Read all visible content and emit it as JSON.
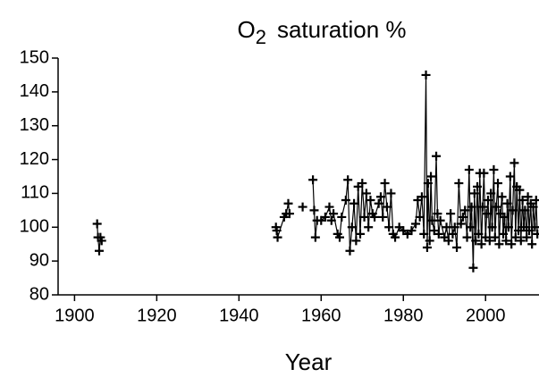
{
  "chart_data": {
    "type": "line",
    "title": [
      "O",
      "2",
      "saturation %"
    ],
    "x_label": "Year",
    "color": "#000000",
    "marker": "plus",
    "xlim": [
      1896,
      2013
    ],
    "ylim": [
      80,
      150
    ],
    "xticks": [
      1900,
      1920,
      1940,
      1960,
      1980,
      2000
    ],
    "yticks": [
      80,
      90,
      100,
      110,
      120,
      130,
      140,
      150
    ],
    "x": [
      1905.5,
      1905.7,
      1906,
      1906.3,
      1906.6,
      null,
      1949,
      1949.2,
      1949.4,
      1951,
      1951.5,
      1952,
      1952.3,
      null,
      1955.5,
      null,
      1958,
      1958.3,
      1958.6,
      1959,
      1960,
      1961,
      1962,
      1962.5,
      1963,
      1964,
      1964.5,
      1965,
      1966,
      1966.5,
      1967,
      1967.5,
      1968,
      1968.5,
      1969,
      1969.5,
      1970,
      1970.5,
      1971,
      1971.5,
      1972,
      1972.5,
      1973,
      1974,
      1974.5,
      1975,
      1975.5,
      1976,
      1976.5,
      1977,
      1977.5,
      1978,
      1979,
      1980,
      1981,
      1982,
      1983,
      1983.5,
      1984,
      1984.5,
      1985,
      1985.5,
      1985.8,
      1986,
      1986.4,
      1986.7,
      1987,
      1987.5,
      1988,
      1988.3,
      1988.6,
      1989,
      1990,
      1990.5,
      1991,
      1991.5,
      1992,
      1992.5,
      1993,
      1993.5,
      1994,
      1994.5,
      1995,
      1995.5,
      1996,
      1996.3,
      1996.6,
      1997,
      1997.3,
      1997.6,
      1998,
      1998.3,
      1998.6,
      1999,
      1999.3,
      1999.6,
      2000,
      2000.3,
      2000.6,
      2001,
      2001.3,
      2001.6,
      2002,
      2002.3,
      2002.6,
      2003,
      2003.3,
      2003.6,
      2004,
      2004.3,
      2004.6,
      2005,
      2005.3,
      2005.6,
      2006,
      2006.3,
      2006.6,
      2007,
      2007.3,
      2007.6,
      2008,
      2008.3,
      2008.6,
      2009,
      2009.3,
      2009.6,
      2010,
      2010.3,
      2010.6,
      2011,
      2011.3,
      2011.6,
      2012,
      2012.3,
      2012.6
    ],
    "values": [
      101,
      97,
      93,
      97,
      96,
      null,
      100,
      99,
      97,
      103,
      104,
      107,
      104,
      null,
      106,
      null,
      114,
      105,
      97,
      102,
      102,
      103,
      106,
      102,
      104,
      98,
      97,
      103,
      108,
      114,
      93,
      100,
      107,
      96,
      112,
      98,
      113,
      103,
      110,
      100,
      108,
      104,
      103,
      107,
      109,
      103,
      113,
      106,
      100,
      110,
      98,
      97,
      100,
      99,
      98,
      99,
      101,
      108,
      103,
      109,
      98,
      145,
      94,
      113,
      96,
      115,
      102,
      99,
      121,
      104,
      98,
      102,
      97,
      100,
      96,
      104,
      98,
      100,
      94,
      113,
      101,
      103,
      105,
      97,
      117,
      100,
      106,
      88,
      110,
      96,
      112,
      98,
      116,
      95,
      106,
      116,
      97,
      104,
      108,
      96,
      110,
      100,
      117,
      97,
      106,
      113,
      95,
      104,
      109,
      98,
      103,
      96,
      107,
      100,
      115,
      95,
      105,
      119,
      97,
      112,
      99,
      111,
      96,
      108,
      100,
      105,
      97,
      109,
      99,
      107,
      95,
      106,
      100,
      108,
      98
    ]
  }
}
